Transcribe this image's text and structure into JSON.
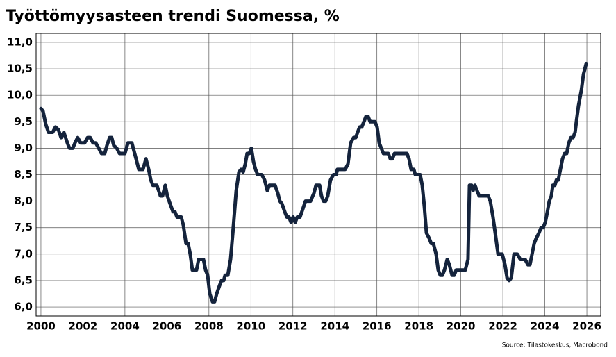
{
  "chart_data": {
    "type": "line",
    "title": "Työttömyysasteen trendi Suomessa, %",
    "source": "Source: Tilastokeskus, Macrobond",
    "color": "#14233c",
    "grid": true,
    "xlim": [
      1999.77,
      2026.66
    ],
    "ylim": [
      5.83,
      11.17
    ],
    "xticks": [
      2000,
      2002,
      2004,
      2006,
      2008,
      2010,
      2012,
      2014,
      2016,
      2018,
      2020,
      2022,
      2024,
      2026
    ],
    "yticks": [
      {
        "value": 6,
        "label": "6,0"
      },
      {
        "value": 6.5,
        "label": "6,5"
      },
      {
        "value": 7,
        "label": "7,0"
      },
      {
        "value": 7.5,
        "label": "7,5"
      },
      {
        "value": 8,
        "label": "8,0"
      },
      {
        "value": 8.5,
        "label": "8,5"
      },
      {
        "value": 9,
        "label": "9,0"
      },
      {
        "value": 9.5,
        "label": "9,5"
      },
      {
        "value": 10,
        "label": "10,0"
      },
      {
        "value": 10.5,
        "label": "10,5"
      },
      {
        "value": 11,
        "label": "11,0"
      }
    ],
    "x": [
      2000,
      2000.1,
      2000.23,
      2000.36,
      2000.56,
      2000.69,
      2000.83,
      2000.96,
      2001.09,
      2001.26,
      2001.36,
      2001.52,
      2001.62,
      2001.75,
      2001.89,
      2002.08,
      2002.22,
      2002.35,
      2002.48,
      2002.61,
      2002.75,
      2002.88,
      2003.04,
      2003.14,
      2003.27,
      2003.37,
      2003.47,
      2003.61,
      2003.74,
      2004.0,
      2004.14,
      2004.33,
      2004.43,
      2004.53,
      2004.66,
      2004.86,
      2005.0,
      2005.13,
      2005.23,
      2005.33,
      2005.52,
      2005.69,
      2005.79,
      2005.92,
      2006.02,
      2006.15,
      2006.29,
      2006.38,
      2006.48,
      2006.68,
      2006.78,
      2006.91,
      2007.01,
      2007.11,
      2007.21,
      2007.41,
      2007.51,
      2007.74,
      2007.84,
      2007.94,
      2008.04,
      2008.17,
      2008.27,
      2008.37,
      2008.5,
      2008.6,
      2008.7,
      2008.77,
      2008.9,
      2009.03,
      2009.16,
      2009.3,
      2009.43,
      2009.53,
      2009.63,
      2009.73,
      2009.82,
      2009.92,
      2010.02,
      2010.12,
      2010.22,
      2010.32,
      2010.52,
      2010.65,
      2010.78,
      2010.88,
      2011.15,
      2011.28,
      2011.38,
      2011.48,
      2011.61,
      2011.71,
      2011.81,
      2011.91,
      2012.01,
      2012.11,
      2012.21,
      2012.34,
      2012.47,
      2012.6,
      2012.84,
      2013.0,
      2013.1,
      2013.27,
      2013.36,
      2013.46,
      2013.56,
      2013.66,
      2013.79,
      2013.93,
      2014.06,
      2014.12,
      2014.49,
      2014.62,
      2014.75,
      2014.89,
      2014.99,
      2015.08,
      2015.18,
      2015.28,
      2015.38,
      2015.48,
      2015.58,
      2015.68,
      2015.91,
      2016.01,
      2016.11,
      2016.21,
      2016.31,
      2016.54,
      2016.64,
      2016.74,
      2016.84,
      2017.43,
      2017.53,
      2017.63,
      2017.76,
      2017.83,
      2018.06,
      2018.16,
      2018.26,
      2018.36,
      2018.49,
      2018.59,
      2018.69,
      2018.82,
      2018.92,
      2019.02,
      2019.12,
      2019.22,
      2019.35,
      2019.45,
      2019.58,
      2019.68,
      2019.78,
      2020.11,
      2020.21,
      2020.34,
      2020.41,
      2020.51,
      2020.58,
      2020.67,
      2020.77,
      2020.87,
      2021.3,
      2021.4,
      2021.53,
      2021.67,
      2021.77,
      2021.97,
      2022.1,
      2022.2,
      2022.3,
      2022.4,
      2022.53,
      2022.69,
      2022.83,
      2023.06,
      2023.19,
      2023.29,
      2023.39,
      2023.49,
      2023.59,
      2023.72,
      2023.82,
      2023.92,
      2024.02,
      2024.12,
      2024.21,
      2024.31,
      2024.38,
      2024.48,
      2024.55,
      2024.64,
      2024.74,
      2024.84,
      2024.94,
      2025.04,
      2025.14,
      2025.24,
      2025.34,
      2025.44,
      2025.5,
      2025.6,
      2025.74,
      2025.84,
      2025.97
    ],
    "values": [
      9.75,
      9.7,
      9.45,
      9.3,
      9.3,
      9.4,
      9.35,
      9.2,
      9.3,
      9.1,
      9.0,
      9.0,
      9.1,
      9.2,
      9.1,
      9.1,
      9.2,
      9.2,
      9.1,
      9.1,
      9.0,
      8.9,
      8.9,
      9.05,
      9.2,
      9.2,
      9.05,
      9.0,
      8.9,
      8.9,
      9.1,
      9.1,
      8.95,
      8.8,
      8.6,
      8.6,
      8.8,
      8.6,
      8.4,
      8.3,
      8.3,
      8.1,
      8.1,
      8.3,
      8.1,
      7.95,
      7.8,
      7.8,
      7.7,
      7.7,
      7.55,
      7.2,
      7.2,
      7.0,
      6.7,
      6.7,
      6.9,
      6.9,
      6.7,
      6.6,
      6.25,
      6.1,
      6.1,
      6.25,
      6.4,
      6.5,
      6.5,
      6.6,
      6.6,
      6.9,
      7.5,
      8.2,
      8.55,
      8.6,
      8.55,
      8.7,
      8.9,
      8.9,
      9.0,
      8.75,
      8.6,
      8.5,
      8.5,
      8.4,
      8.2,
      8.3,
      8.3,
      8.15,
      8.0,
      7.95,
      7.8,
      7.7,
      7.7,
      7.6,
      7.7,
      7.6,
      7.7,
      7.7,
      7.85,
      8.0,
      8.0,
      8.15,
      8.3,
      8.3,
      8.1,
      8.0,
      8.0,
      8.1,
      8.4,
      8.5,
      8.5,
      8.6,
      8.6,
      8.7,
      9.1,
      9.2,
      9.2,
      9.3,
      9.4,
      9.4,
      9.5,
      9.6,
      9.6,
      9.5,
      9.5,
      9.4,
      9.1,
      9.0,
      8.9,
      8.9,
      8.8,
      8.8,
      8.9,
      8.9,
      8.8,
      8.6,
      8.6,
      8.5,
      8.5,
      8.3,
      7.9,
      7.4,
      7.3,
      7.2,
      7.2,
      7.0,
      6.7,
      6.6,
      6.6,
      6.7,
      6.9,
      6.8,
      6.6,
      6.6,
      6.7,
      6.7,
      6.7,
      6.9,
      8.3,
      8.3,
      8.2,
      8.3,
      8.2,
      8.1,
      8.1,
      8.0,
      7.7,
      7.3,
      7.0,
      7.0,
      6.8,
      6.55,
      6.5,
      6.55,
      7.0,
      7.0,
      6.9,
      6.9,
      6.8,
      6.8,
      7.0,
      7.2,
      7.3,
      7.4,
      7.5,
      7.5,
      7.6,
      7.8,
      8.0,
      8.1,
      8.3,
      8.3,
      8.4,
      8.4,
      8.6,
      8.8,
      8.9,
      8.9,
      9.1,
      9.2,
      9.2,
      9.3,
      9.5,
      9.8,
      10.1,
      10.4,
      10.6
    ]
  }
}
